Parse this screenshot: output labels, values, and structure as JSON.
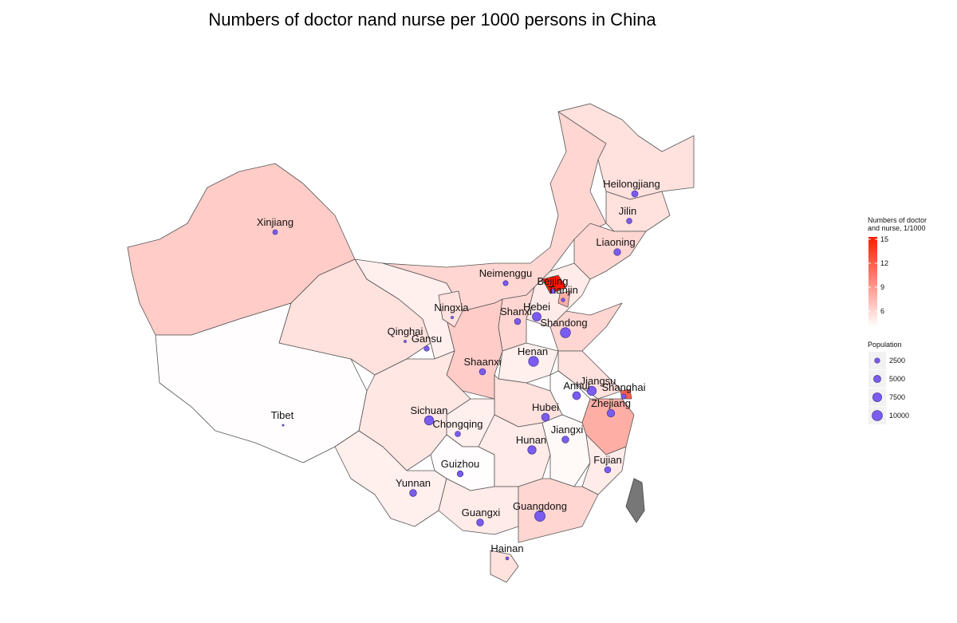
{
  "chart_data": {
    "type": "map",
    "title": "Numbers of doctor nand nurse per 1000 persons in China",
    "bubble_color": "#7a5cf0",
    "fill_scale": {
      "title": [
        "Numbers of doctor",
        "and nurse, 1/1000"
      ],
      "lim": [
        4,
        15.3
      ],
      "ticks": [
        6,
        9,
        12,
        15
      ],
      "low_color": "#ffffff",
      "high_color": "#ff1a00"
    },
    "size_scale": {
      "title": "Population",
      "breaks": [
        2500,
        5000,
        7500,
        10000
      ]
    },
    "provinces": [
      {
        "name": "Xinjiang",
        "value": 6.5,
        "population": 2180
      },
      {
        "name": "Tibet",
        "value": 4.1,
        "population": 300
      },
      {
        "name": "Qinghai",
        "value": 5.5,
        "population": 560
      },
      {
        "name": "Gansu",
        "value": 4.8,
        "population": 2560
      },
      {
        "name": "Neimenggu",
        "value": 6.0,
        "population": 2470
      },
      {
        "name": "Heilongjiang",
        "value": 5.5,
        "population": 3830
      },
      {
        "name": "Jilin",
        "value": 5.5,
        "population": 2750
      },
      {
        "name": "Liaoning",
        "value": 6.0,
        "population": 4380
      },
      {
        "name": "Hebei",
        "value": 5.0,
        "population": 7190
      },
      {
        "name": "Beijing",
        "value": 15.3,
        "population": 1960
      },
      {
        "name": "Tianjin",
        "value": 8.0,
        "population": 1290
      },
      {
        "name": "Shanxi",
        "value": 6.0,
        "population": 3570
      },
      {
        "name": "Shandong",
        "value": 6.0,
        "population": 9580
      },
      {
        "name": "Shaanxi",
        "value": 6.5,
        "population": 3730
      },
      {
        "name": "Ningxia",
        "value": 5.5,
        "population": 630
      },
      {
        "name": "Henan",
        "value": 4.8,
        "population": 9400
      },
      {
        "name": "Jiangsu",
        "value": 5.5,
        "population": 7870
      },
      {
        "name": "Anhui",
        "value": 4.1,
        "population": 5950
      },
      {
        "name": "Shanghai",
        "value": 12.0,
        "population": 2300
      },
      {
        "name": "Zhejiang",
        "value": 8.0,
        "population": 5440
      },
      {
        "name": "Hubei",
        "value": 5.5,
        "population": 5720
      },
      {
        "name": "Chongqing",
        "value": 4.8,
        "population": 2880
      },
      {
        "name": "Sichuan",
        "value": 5.2,
        "population": 8040
      },
      {
        "name": "Guizhou",
        "value": 4.1,
        "population": 3470
      },
      {
        "name": "Yunnan",
        "value": 4.8,
        "population": 4600
      },
      {
        "name": "Hunan",
        "value": 5.0,
        "population": 6570
      },
      {
        "name": "Jiangxi",
        "value": 4.3,
        "population": 4460
      },
      {
        "name": "Fujian",
        "value": 5.0,
        "population": 3690
      },
      {
        "name": "Guangxi",
        "value": 5.0,
        "population": 4600
      },
      {
        "name": "Guangdong",
        "value": 6.0,
        "population": 10430
      },
      {
        "name": "Hainan",
        "value": 5.5,
        "population": 870
      }
    ]
  }
}
